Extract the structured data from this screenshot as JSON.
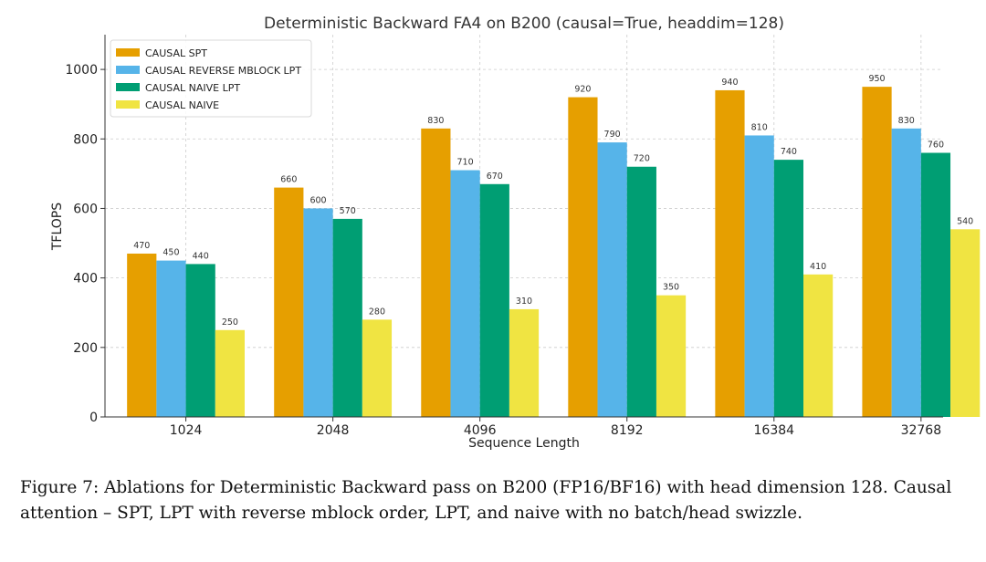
{
  "chart_data": {
    "type": "bar",
    "title": "Deterministic Backward FA4 on B200 (causal=True, headdim=128)",
    "xlabel": "Sequence Length",
    "ylabel": "TFLOPS",
    "ylim": [
      0,
      1100
    ],
    "yticks": [
      0,
      200,
      400,
      600,
      800,
      1000
    ],
    "grid": true,
    "legend_position": "top-left",
    "categories": [
      "1024",
      "2048",
      "4096",
      "8192",
      "16384",
      "32768"
    ],
    "series": [
      {
        "name": "CAUSAL SPT",
        "color": "#E69F00",
        "values": [
          470,
          660,
          830,
          920,
          940,
          950
        ]
      },
      {
        "name": "CAUSAL REVERSE MBLOCK LPT",
        "color": "#56B4E9",
        "values": [
          450,
          600,
          710,
          790,
          810,
          830
        ]
      },
      {
        "name": "CAUSAL NAIVE LPT",
        "color": "#009E73",
        "values": [
          440,
          570,
          670,
          720,
          740,
          760
        ]
      },
      {
        "name": "CAUSAL NAIVE",
        "color": "#F0E442",
        "values": [
          250,
          280,
          310,
          350,
          410,
          540
        ]
      }
    ]
  },
  "caption": "Figure 7: Ablations for Deterministic Backward pass on B200 (FP16/BF16) with head dimension 128. Causal attention – SPT, LPT with reverse mblock order, LPT, and naive with no batch/head swizzle."
}
